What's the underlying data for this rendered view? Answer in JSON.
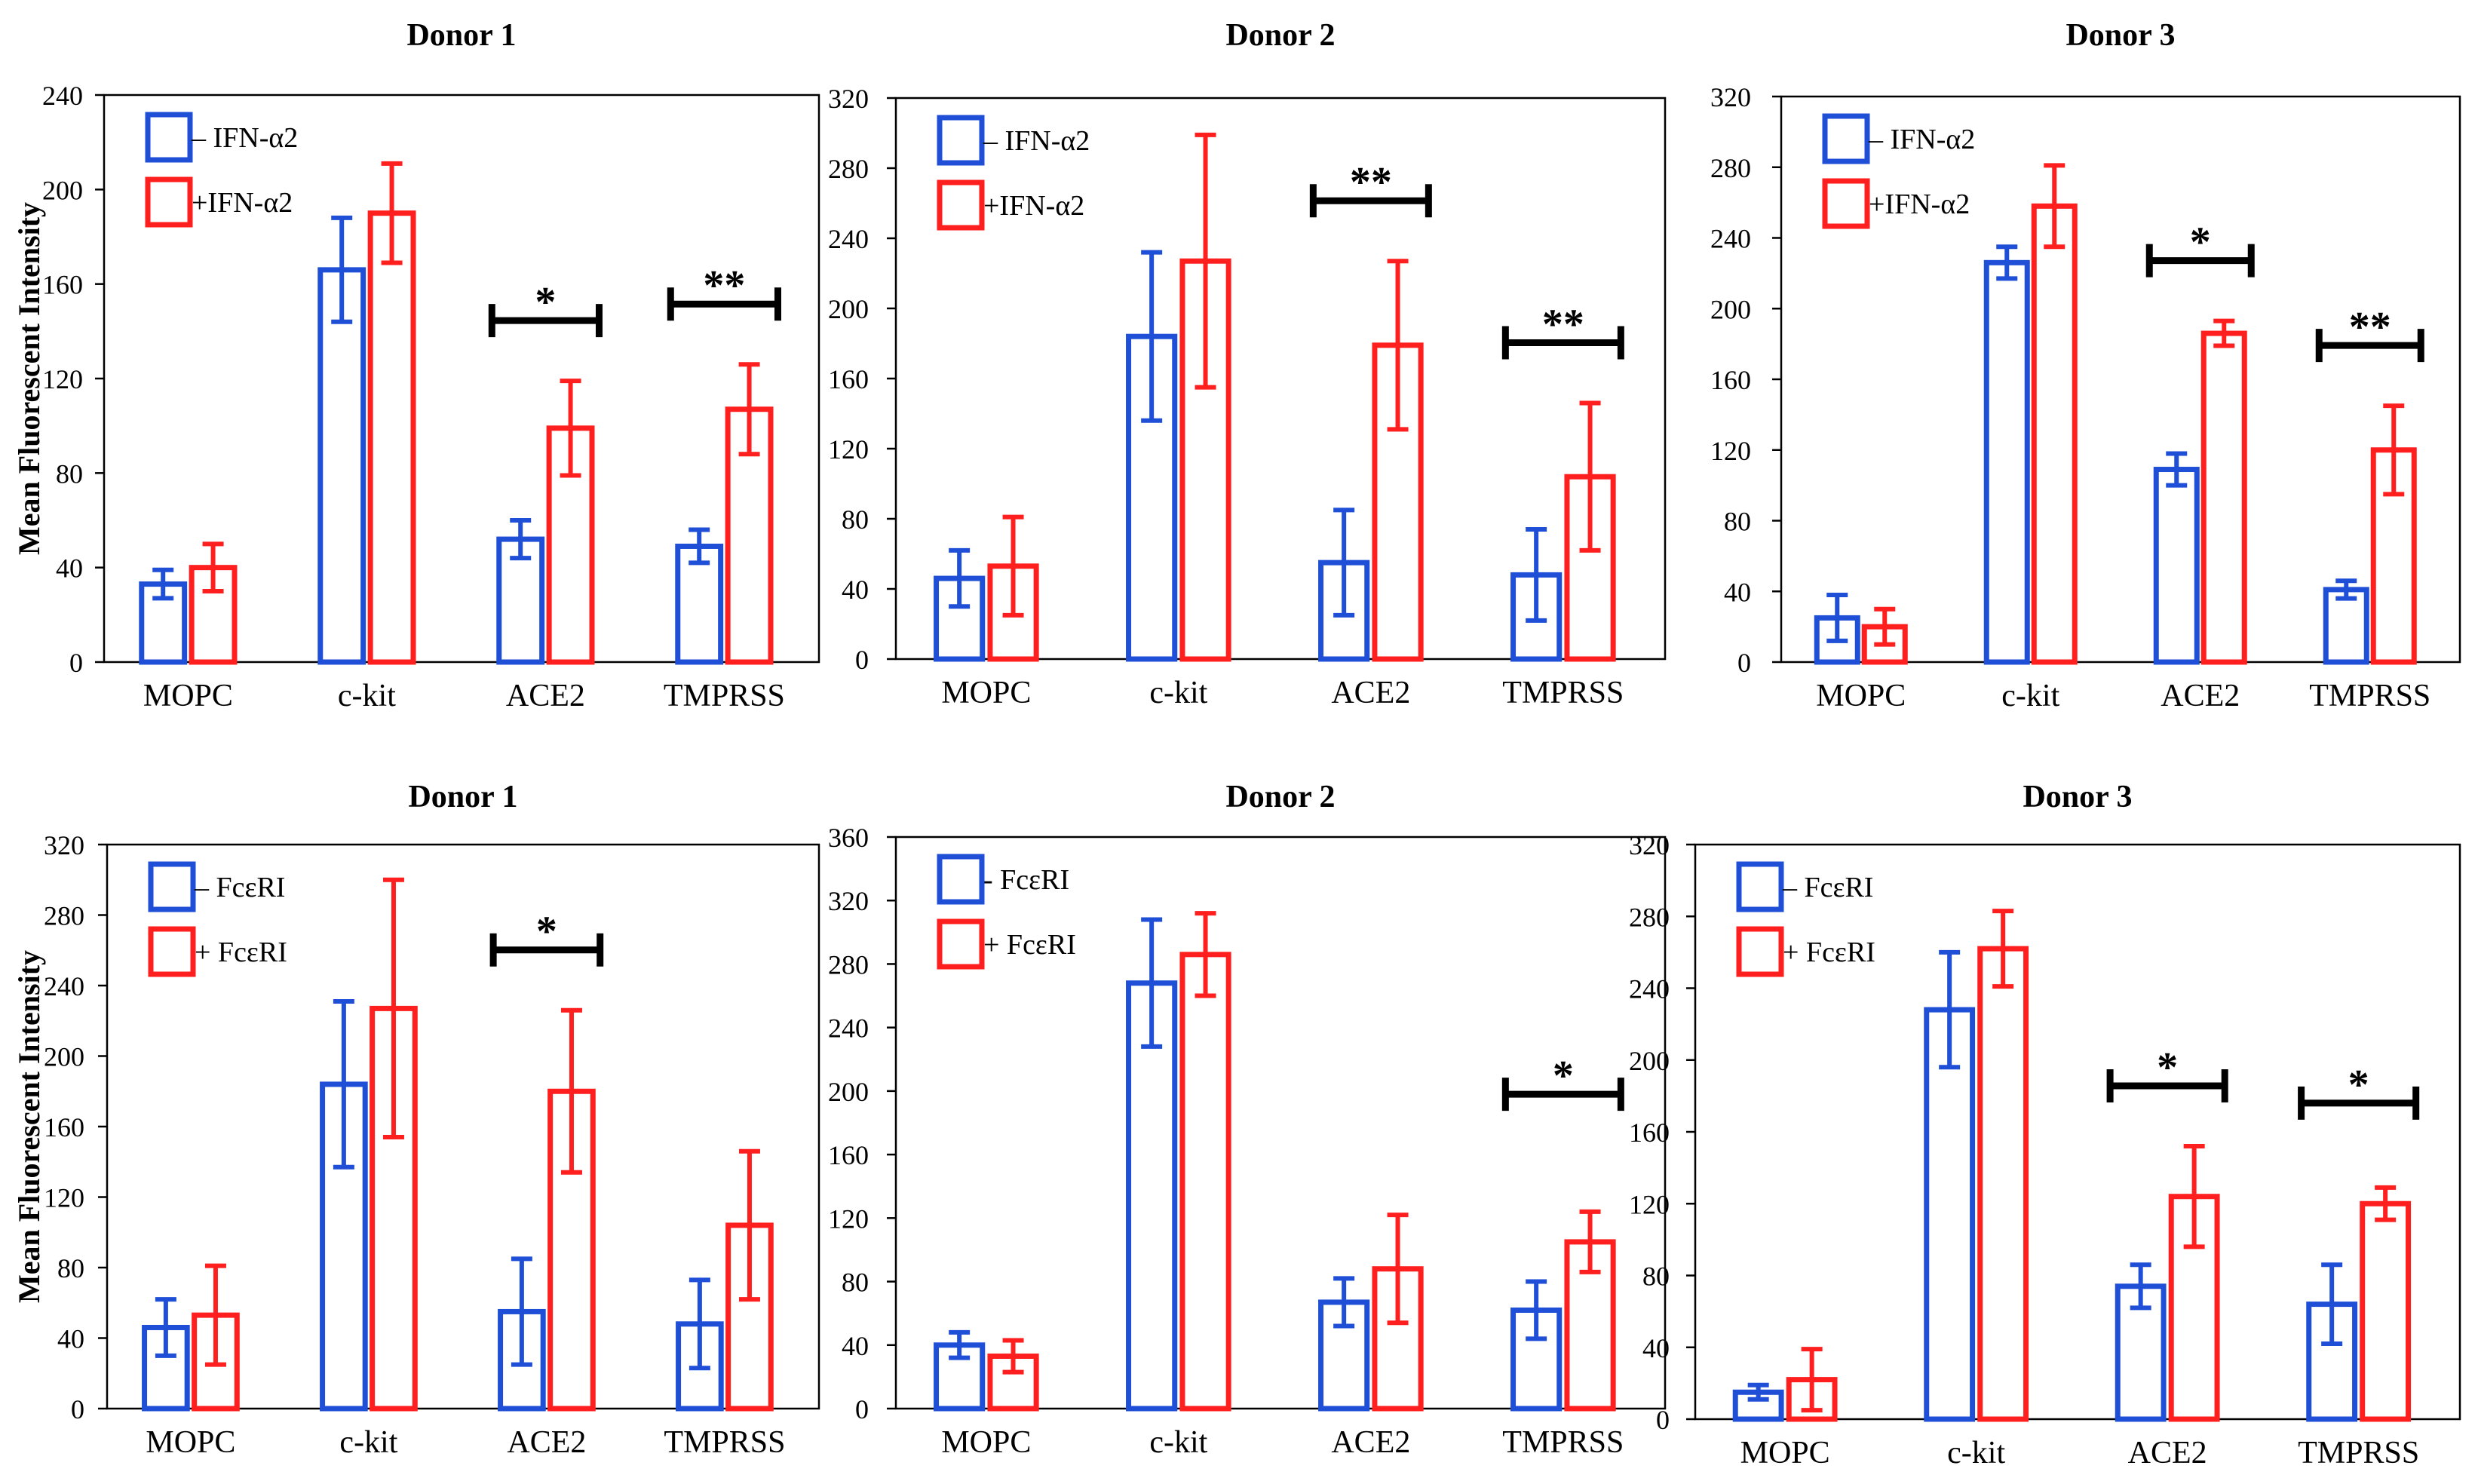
{
  "colors": {
    "minus": "#1f4fd6",
    "plus": "#ff1f1f",
    "axis": "#000000"
  },
  "ylabel": "Mean Fluorescent Intensity",
  "chart_data": [
    {
      "type": "bar",
      "title": "Donor 1",
      "categories": [
        "MOPC",
        "c-kit",
        "ACE2",
        "TMPRSS"
      ],
      "ylim": [
        0,
        240
      ],
      "yticks": [
        0,
        40,
        80,
        120,
        160,
        200,
        240
      ],
      "legend": [
        "– IFN-α2",
        "+IFN-α2"
      ],
      "series": [
        {
          "name": "– IFN-α2",
          "values": [
            33,
            166,
            52,
            49
          ],
          "errors": [
            6,
            22,
            8,
            7
          ]
        },
        {
          "name": "+IFN-α2",
          "values": [
            40,
            190,
            99,
            107
          ],
          "errors": [
            10,
            21,
            20,
            19
          ]
        }
      ],
      "significance": [
        {
          "category": "ACE2",
          "label": "*"
        },
        {
          "category": "TMPRSS",
          "label": "**"
        }
      ]
    },
    {
      "type": "bar",
      "title": "Donor 2",
      "categories": [
        "MOPC",
        "c-kit",
        "ACE2",
        "TMPRSS"
      ],
      "ylim": [
        0,
        320
      ],
      "yticks": [
        0,
        40,
        80,
        120,
        160,
        200,
        240,
        280,
        320
      ],
      "legend": [
        "– IFN-α2",
        "+IFN-α2"
      ],
      "series": [
        {
          "name": "– IFN-α2",
          "values": [
            46,
            184,
            55,
            48
          ],
          "errors": [
            16,
            48,
            30,
            26
          ]
        },
        {
          "name": "+IFN-α2",
          "values": [
            53,
            227,
            179,
            104
          ],
          "errors": [
            28,
            72,
            48,
            42
          ]
        }
      ],
      "significance": [
        {
          "category": "ACE2",
          "label": "**"
        },
        {
          "category": "TMPRSS",
          "label": "**"
        }
      ]
    },
    {
      "type": "bar",
      "title": "Donor 3",
      "categories": [
        "MOPC",
        "c-kit",
        "ACE2",
        "TMPRSS"
      ],
      "ylim": [
        0,
        320
      ],
      "yticks": [
        0,
        40,
        80,
        120,
        160,
        200,
        240,
        280,
        320
      ],
      "legend": [
        "– IFN-α2",
        "+IFN-α2"
      ],
      "series": [
        {
          "name": "– IFN-α2",
          "values": [
            25,
            226,
            109,
            41
          ],
          "errors": [
            13,
            9,
            9,
            5
          ]
        },
        {
          "name": "+IFN-α2",
          "values": [
            20,
            258,
            186,
            120
          ],
          "errors": [
            10,
            23,
            7,
            25
          ]
        }
      ],
      "significance": [
        {
          "category": "ACE2",
          "label": "*"
        },
        {
          "category": "TMPRSS",
          "label": "**"
        }
      ]
    },
    {
      "type": "bar",
      "title": "Donor 1",
      "categories": [
        "MOPC",
        "c-kit",
        "ACE2",
        "TMPRSS"
      ],
      "ylim": [
        0,
        320
      ],
      "yticks": [
        0,
        40,
        80,
        120,
        160,
        200,
        240,
        280,
        320
      ],
      "legend": [
        "– FcεRI",
        "+ FcεRI"
      ],
      "series": [
        {
          "name": "– FcεRI",
          "values": [
            46,
            184,
            55,
            48
          ],
          "errors": [
            16,
            47,
            30,
            25
          ]
        },
        {
          "name": "+ FcεRI",
          "values": [
            53,
            227,
            180,
            104
          ],
          "errors": [
            28,
            73,
            46,
            42
          ]
        }
      ],
      "significance": [
        {
          "category": "ACE2",
          "label": "*"
        }
      ]
    },
    {
      "type": "bar",
      "title": "Donor 2",
      "categories": [
        "MOPC",
        "c-kit",
        "ACE2",
        "TMPRSS"
      ],
      "ylim": [
        0,
        360
      ],
      "yticks": [
        0,
        40,
        80,
        120,
        160,
        200,
        240,
        280,
        320,
        360
      ],
      "legend": [
        "- FcεRI",
        "+ FcεRI"
      ],
      "series": [
        {
          "name": "- FcεRI",
          "values": [
            40,
            268,
            67,
            62
          ],
          "errors": [
            8,
            40,
            15,
            18
          ]
        },
        {
          "name": "+ FcεRI",
          "values": [
            33,
            286,
            88,
            105
          ],
          "errors": [
            10,
            26,
            34,
            19
          ]
        }
      ],
      "significance": [
        {
          "category": "TMPRSS",
          "label": "*"
        }
      ]
    },
    {
      "type": "bar",
      "title": "Donor 3",
      "categories": [
        "MOPC",
        "c-kit",
        "ACE2",
        "TMPRSS"
      ],
      "ylim": [
        0,
        320
      ],
      "yticks": [
        0,
        40,
        80,
        120,
        160,
        200,
        240,
        280,
        320
      ],
      "legend": [
        "– FcεRI",
        "+ FcεRI"
      ],
      "series": [
        {
          "name": "– FcεRI",
          "values": [
            15,
            228,
            74,
            64
          ],
          "errors": [
            4,
            32,
            12,
            22
          ]
        },
        {
          "name": "+ FcεRI",
          "values": [
            22,
            262,
            124,
            120
          ],
          "errors": [
            17,
            21,
            28,
            9
          ]
        }
      ],
      "significance": [
        {
          "category": "ACE2",
          "label": "*"
        },
        {
          "category": "TMPRSS",
          "label": "*"
        }
      ]
    }
  ]
}
